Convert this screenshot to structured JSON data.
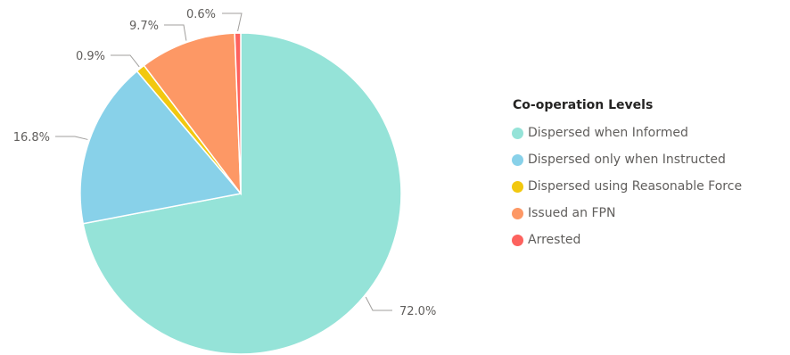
{
  "chart_data": {
    "type": "pie",
    "legend_title": "Co-operation Levels",
    "legend_position": "right",
    "slices": [
      {
        "label": "Dispersed when Informed",
        "value": 72.0,
        "display": "72.0%",
        "color": "#95e3d8"
      },
      {
        "label": "Dispersed only when Instructed",
        "value": 16.8,
        "display": "16.8%",
        "color": "#88d1e9"
      },
      {
        "label": "Dispersed using Reasonable Force",
        "value": 0.9,
        "display": "0.9%",
        "color": "#f2c80f"
      },
      {
        "label": "Issued an FPN",
        "value": 9.7,
        "display": "9.7%",
        "color": "#fd9865"
      },
      {
        "label": "Arrested",
        "value": 0.6,
        "display": "0.6%",
        "color": "#fd625e"
      }
    ]
  }
}
